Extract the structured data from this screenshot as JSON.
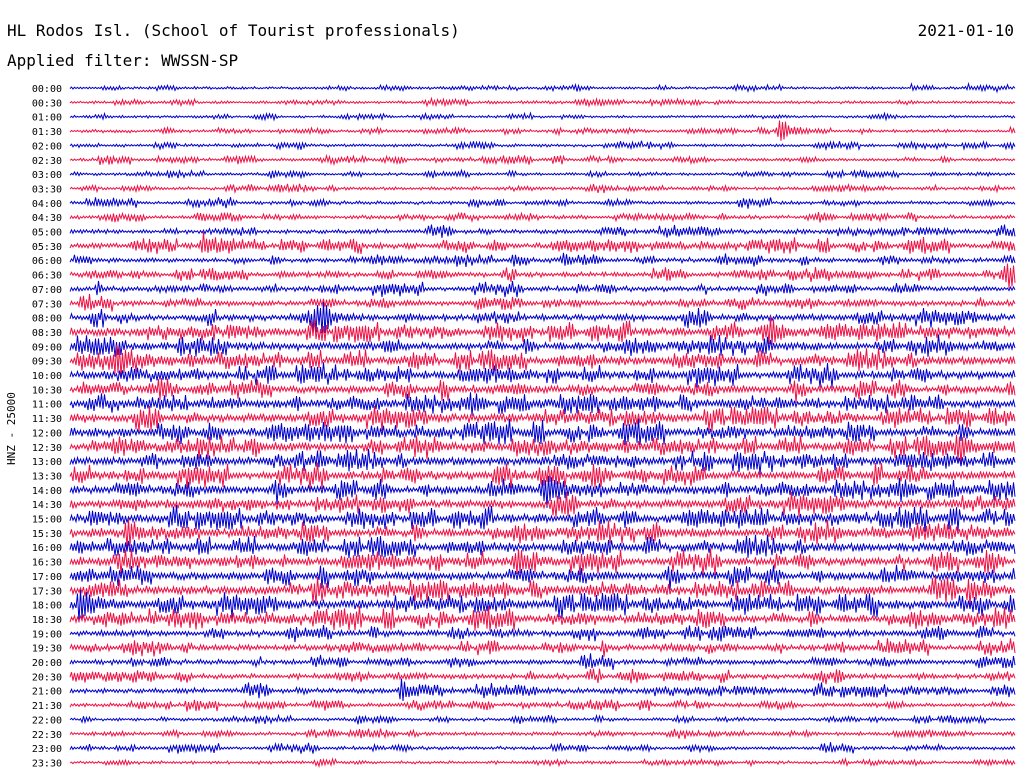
{
  "header": {
    "station": "HL Rodos Isl. (School of Tourist professionals)",
    "filter_label": "Applied filter: WWSSN-SP",
    "date": "2021-01-10"
  },
  "side_label": "HNZ - 25000",
  "colors": {
    "even_row": "#0000cc",
    "odd_row": "#ee1144"
  },
  "chart_data": {
    "type": "line",
    "title": "HL Rodos Isl. (School of Tourist professionals)",
    "subtitle": "Applied filter: WWSSN-SP",
    "ylabel": "HNZ - 25000",
    "xlabel": "",
    "row_interval_minutes": 30,
    "grid": false,
    "rows": [
      {
        "time": "00:00",
        "activity": 0.1
      },
      {
        "time": "00:30",
        "activity": 0.12
      },
      {
        "time": "01:00",
        "activity": 0.1
      },
      {
        "time": "01:30",
        "activity": 0.14
      },
      {
        "time": "02:00",
        "activity": 0.12
      },
      {
        "time": "02:30",
        "activity": 0.15
      },
      {
        "time": "03:00",
        "activity": 0.12
      },
      {
        "time": "03:30",
        "activity": 0.15
      },
      {
        "time": "04:00",
        "activity": 0.18
      },
      {
        "time": "04:30",
        "activity": 0.2
      },
      {
        "time": "05:00",
        "activity": 0.25
      },
      {
        "time": "05:30",
        "activity": 0.35
      },
      {
        "time": "06:00",
        "activity": 0.28
      },
      {
        "time": "06:30",
        "activity": 0.3
      },
      {
        "time": "07:00",
        "activity": 0.32
      },
      {
        "time": "07:30",
        "activity": 0.35
      },
      {
        "time": "08:00",
        "activity": 0.45
      },
      {
        "time": "08:30",
        "activity": 0.55
      },
      {
        "time": "09:00",
        "activity": 0.55
      },
      {
        "time": "09:30",
        "activity": 0.6
      },
      {
        "time": "10:00",
        "activity": 0.55
      },
      {
        "time": "10:30",
        "activity": 0.55
      },
      {
        "time": "11:00",
        "activity": 0.6
      },
      {
        "time": "11:30",
        "activity": 0.6
      },
      {
        "time": "12:00",
        "activity": 0.62
      },
      {
        "time": "12:30",
        "activity": 0.6
      },
      {
        "time": "13:00",
        "activity": 0.58
      },
      {
        "time": "13:30",
        "activity": 0.6
      },
      {
        "time": "14:00",
        "activity": 0.62
      },
      {
        "time": "14:30",
        "activity": 0.6
      },
      {
        "time": "15:00",
        "activity": 0.6
      },
      {
        "time": "15:30",
        "activity": 0.62
      },
      {
        "time": "16:00",
        "activity": 0.6
      },
      {
        "time": "16:30",
        "activity": 0.6
      },
      {
        "time": "17:00",
        "activity": 0.6
      },
      {
        "time": "17:30",
        "activity": 0.65
      },
      {
        "time": "18:00",
        "activity": 0.62
      },
      {
        "time": "18:30",
        "activity": 0.58
      },
      {
        "time": "19:00",
        "activity": 0.4
      },
      {
        "time": "19:30",
        "activity": 0.38
      },
      {
        "time": "20:00",
        "activity": 0.32
      },
      {
        "time": "20:30",
        "activity": 0.32
      },
      {
        "time": "21:00",
        "activity": 0.32
      },
      {
        "time": "21:30",
        "activity": 0.22
      },
      {
        "time": "22:00",
        "activity": 0.15
      },
      {
        "time": "22:30",
        "activity": 0.18
      },
      {
        "time": "23:00",
        "activity": 0.18
      },
      {
        "time": "23:30",
        "activity": 0.14
      }
    ],
    "events": [
      {
        "time": "01:30",
        "position": 0.75,
        "strength": 0.9
      },
      {
        "time": "05:30",
        "position": 0.14,
        "strength": 0.9
      },
      {
        "time": "06:30",
        "position": 0.99,
        "strength": 0.9
      },
      {
        "time": "08:00",
        "position": 0.26,
        "strength": 1.0
      },
      {
        "time": "08:30",
        "position": 0.74,
        "strength": 0.9
      },
      {
        "time": "09:30",
        "position": 0.05,
        "strength": 1.0
      },
      {
        "time": "12:30",
        "position": 0.94,
        "strength": 0.9
      },
      {
        "time": "13:30",
        "position": 0.45,
        "strength": 0.9
      },
      {
        "time": "14:00",
        "position": 0.5,
        "strength": 1.3
      },
      {
        "time": "15:30",
        "position": 0.06,
        "strength": 1.0
      },
      {
        "time": "16:30",
        "position": 0.47,
        "strength": 0.9
      },
      {
        "time": "17:30",
        "position": 0.95,
        "strength": 0.9
      },
      {
        "time": "18:00",
        "position": 0.01,
        "strength": 1.4
      },
      {
        "time": "21:00",
        "position": 0.35,
        "strength": 0.7
      }
    ]
  }
}
